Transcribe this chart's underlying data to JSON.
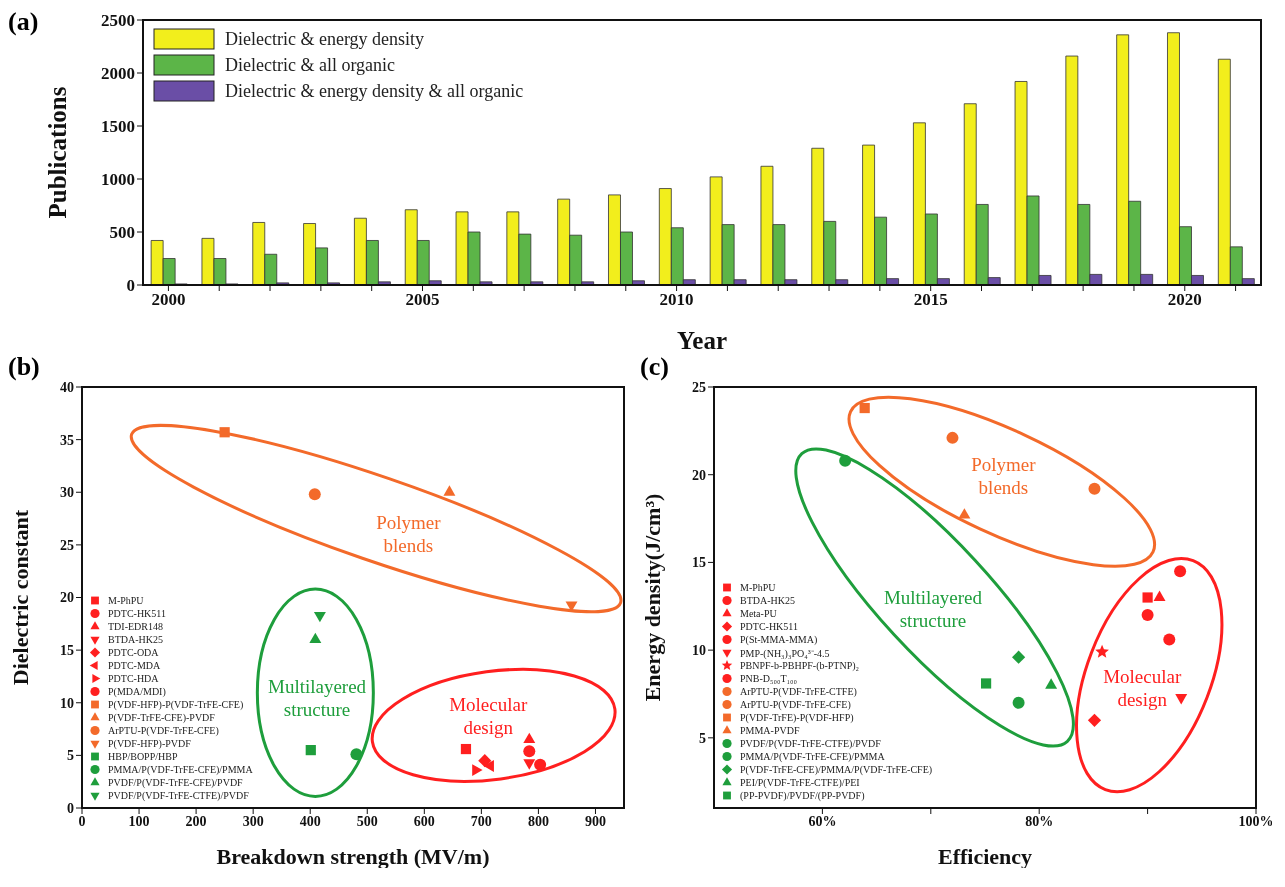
{
  "chart_data": [
    {
      "type": "bar",
      "annotations": [
        "(a)"
      ],
      "xlabel": "Year",
      "ylabel": "Publications",
      "categories": [
        "2000",
        null,
        null,
        null,
        null,
        "2005",
        null,
        null,
        null,
        null,
        "2010",
        null,
        null,
        null,
        null,
        "2015",
        null,
        null,
        null,
        null,
        "2020",
        null
      ],
      "ylim": [
        0,
        2500
      ],
      "yticks": [
        0,
        500,
        1000,
        1500,
        2000,
        2500
      ],
      "legend": "top left",
      "series": [
        {
          "name": "Dielectric & energy density",
          "color": "#f2ee1c",
          "values": [
            420,
            440,
            590,
            580,
            630,
            710,
            690,
            690,
            810,
            850,
            910,
            1020,
            1120,
            1290,
            1320,
            1530,
            1710,
            1920,
            2160,
            2360,
            2380,
            2130
          ]
        },
        {
          "name": "Dielectric & all organic",
          "color": "#5cb548",
          "values": [
            250,
            250,
            290,
            350,
            420,
            420,
            500,
            480,
            470,
            500,
            540,
            570,
            570,
            600,
            640,
            670,
            760,
            840,
            760,
            790,
            550,
            360
          ]
        },
        {
          "name": "Dielectric & energy density & all organic",
          "color": "#6a4ea6",
          "values": [
            10,
            10,
            20,
            20,
            30,
            40,
            30,
            30,
            30,
            40,
            50,
            50,
            50,
            50,
            60,
            60,
            70,
            90,
            100,
            100,
            90,
            60
          ]
        }
      ]
    },
    {
      "type": "scatter",
      "annotations": [
        "(b)",
        "Polymer blends",
        "Multilayered structure",
        "Molecular design"
      ],
      "xlabel": "Breakdown strength (MV/m)",
      "ylabel": "Dielectric constant",
      "xlim": [
        0,
        950
      ],
      "xticks": [
        0,
        100,
        200,
        300,
        400,
        500,
        600,
        700,
        800,
        900
      ],
      "ylim": [
        0,
        40
      ],
      "yticks": [
        0,
        5,
        10,
        15,
        20,
        25,
        30,
        35,
        40
      ],
      "legend": "bottom left",
      "series": [
        {
          "name": "M-PhPU",
          "color": "#ff1f1f",
          "marker": "square",
          "x": [
            673
          ],
          "values": [
            5.6
          ]
        },
        {
          "name": "PDTC-HK511",
          "color": "#ff1f1f",
          "marker": "circle",
          "x": [
            784
          ],
          "values": [
            5.4
          ]
        },
        {
          "name": "TDI-EDR148",
          "color": "#ff1f1f",
          "marker": "triangle",
          "x": [
            784
          ],
          "values": [
            6.5
          ]
        },
        {
          "name": "BTDA-HK25",
          "color": "#ff1f1f",
          "marker": "triangle-down",
          "x": [
            784
          ],
          "values": [
            4.3
          ]
        },
        {
          "name": "PDTC-ODA",
          "color": "#ff1f1f",
          "marker": "diamond",
          "x": [
            706
          ],
          "values": [
            4.5
          ]
        },
        {
          "name": "PDTC-MDA",
          "color": "#ff1f1f",
          "marker": "triangle-left",
          "x": [
            716
          ],
          "values": [
            4
          ]
        },
        {
          "name": "PDTC-HDA",
          "color": "#ff1f1f",
          "marker": "triangle-right",
          "x": [
            690
          ],
          "values": [
            3.6
          ]
        },
        {
          "name": "P(MDA/MDI)",
          "color": "#ff1f1f",
          "x": [
            803
          ],
          "values": [
            4.1
          ]
        },
        {
          "name": "P(VDF-HFP)-P(VDF-TrFE-CFE)",
          "color": "#f36a2a",
          "marker": "square",
          "x": [
            250
          ],
          "values": [
            35.7
          ]
        },
        {
          "name": "P(VDF-TrFE-CFE)-PVDF",
          "color": "#f36a2a",
          "marker": "triangle",
          "x": [
            644
          ],
          "values": [
            30
          ]
        },
        {
          "name": "ArPTU-P(VDF-TrFE-CFE)",
          "color": "#f36a2a",
          "marker": "circle",
          "x": [
            408
          ],
          "values": [
            29.8
          ]
        },
        {
          "name": "P(VDF-HFP)-PVDF",
          "color": "#f36a2a",
          "marker": "triangle-down",
          "x": [
            858
          ],
          "values": [
            19.3
          ]
        },
        {
          "name": "HBP/BOPP/HBP",
          "color": "#1e9e3c",
          "marker": "square",
          "x": [
            401
          ],
          "values": [
            5.5
          ]
        },
        {
          "name": "PMMA/P(VDF-TrFE-CFE)/PMMA",
          "color": "#1e9e3c",
          "marker": "circle",
          "x": [
            481
          ],
          "values": [
            5.1
          ]
        },
        {
          "name": "PVDF/P(VDF-TrFE-CFE)/PVDF",
          "color": "#1e9e3c",
          "marker": "triangle",
          "x": [
            409
          ],
          "values": [
            16
          ]
        },
        {
          "name": "PVDF/P(VDF-TrFE-CTFE)/PVDF",
          "color": "#1e9e3c",
          "marker": "triangle-down",
          "x": [
            417
          ],
          "values": [
            18.3
          ]
        }
      ]
    },
    {
      "type": "scatter",
      "annotations": [
        "(c)",
        "Polymer blends",
        "Multilayered structure",
        "Molecular design"
      ],
      "xlabel": "Efficiency",
      "ylabel": "Energy density(J/cm³)",
      "xlim": [
        50,
        100
      ],
      "xticks": [
        {
          "value": 60,
          "label": "60%"
        },
        {
          "value": 70,
          "label": null
        },
        {
          "value": 80,
          "label": "80%"
        },
        {
          "value": 90,
          "label": null
        },
        {
          "value": 100,
          "label": "100%"
        }
      ],
      "ylim": [
        1,
        25
      ],
      "yticks": [
        5,
        10,
        15,
        20,
        25
      ],
      "legend": "bottom left",
      "series": [
        {
          "name": "M-PhPU",
          "color": "#ff1f1f",
          "marker": "square",
          "x": [
            90
          ],
          "values": [
            13
          ]
        },
        {
          "name": "BTDA-HK25",
          "color": "#ff1f1f",
          "marker": "circle",
          "x": [
            90
          ],
          "values": [
            12
          ]
        },
        {
          "name": "Meta-PU",
          "color": "#ff1f1f",
          "marker": "triangle",
          "x": [
            91.1
          ],
          "values": [
            13
          ]
        },
        {
          "name": "PDTC-HK511",
          "color": "#ff1f1f",
          "marker": "diamond",
          "x": [
            85.1
          ],
          "values": [
            6
          ]
        },
        {
          "name": "P(St-MMA-MMA)",
          "color": "#ff1f1f",
          "x": [
            93
          ],
          "values": [
            14.5
          ]
        },
        {
          "name": "PMP-(NH₃)₃PO₄³⁻-4.5",
          "color": "#ff1f1f",
          "marker": "triangle-down",
          "x": [
            93.1
          ],
          "values": [
            7.3
          ]
        },
        {
          "name": "PBNPF-b-PBHPF-(b-PTNP)₂",
          "color": "#ff1f1f",
          "marker": "star",
          "x": [
            85.8
          ],
          "values": [
            9.9
          ]
        },
        {
          "name": "PNB-D₅₀₀T₁₀₀",
          "color": "#ff1f1f",
          "x": [
            92
          ],
          "values": [
            10.6
          ]
        },
        {
          "name": "ArPTU-P(VDF-TrFE-CTFE)",
          "color": "#f36a2a",
          "marker": "circle",
          "x": [
            85.1
          ],
          "values": [
            19.2
          ]
        },
        {
          "name": "ArPTU-P(VDF-TrFE-CFE)",
          "color": "#f36a2a",
          "marker": "circle",
          "x": [
            72
          ],
          "values": [
            22.1
          ]
        },
        {
          "name": "P(VDF-TrFE)-P(VDF-HFP)",
          "color": "#f36a2a",
          "marker": "square",
          "x": [
            63.9
          ],
          "values": [
            23.8
          ]
        },
        {
          "name": "PMMA-PVDF",
          "color": "#f36a2a",
          "marker": "triangle",
          "x": [
            73.1
          ],
          "values": [
            17.7
          ]
        },
        {
          "name": "PVDF/P(VDF-TrFE-CTFE)/PVDF",
          "color": "#1e9e3c",
          "x": [
            62.1
          ],
          "values": [
            20.8
          ]
        },
        {
          "name": "PMMA/P(VDF-TrFE-CFE)/PMMA",
          "color": "#1e9e3c",
          "marker": "circle",
          "x": [
            78.1
          ],
          "values": [
            7
          ]
        },
        {
          "name": "P(VDF-TrFE-CFE)/PMMA/P(VDF-TrFE-CFE)",
          "color": "#1e9e3c",
          "marker": "diamond",
          "x": [
            78.1
          ],
          "values": [
            9.6
          ]
        },
        {
          "name": "PEI/P(VDF-TrFE-CTFE)/PEI",
          "color": "#1e9e3c",
          "marker": "triangle",
          "x": [
            81.1
          ],
          "values": [
            8
          ]
        },
        {
          "name": "(PP-PVDF)/PVDF/(PP-PVDF)",
          "color": "#1e9e3c",
          "marker": "square",
          "x": [
            75.1
          ],
          "values": [
            8.1
          ]
        }
      ]
    }
  ]
}
